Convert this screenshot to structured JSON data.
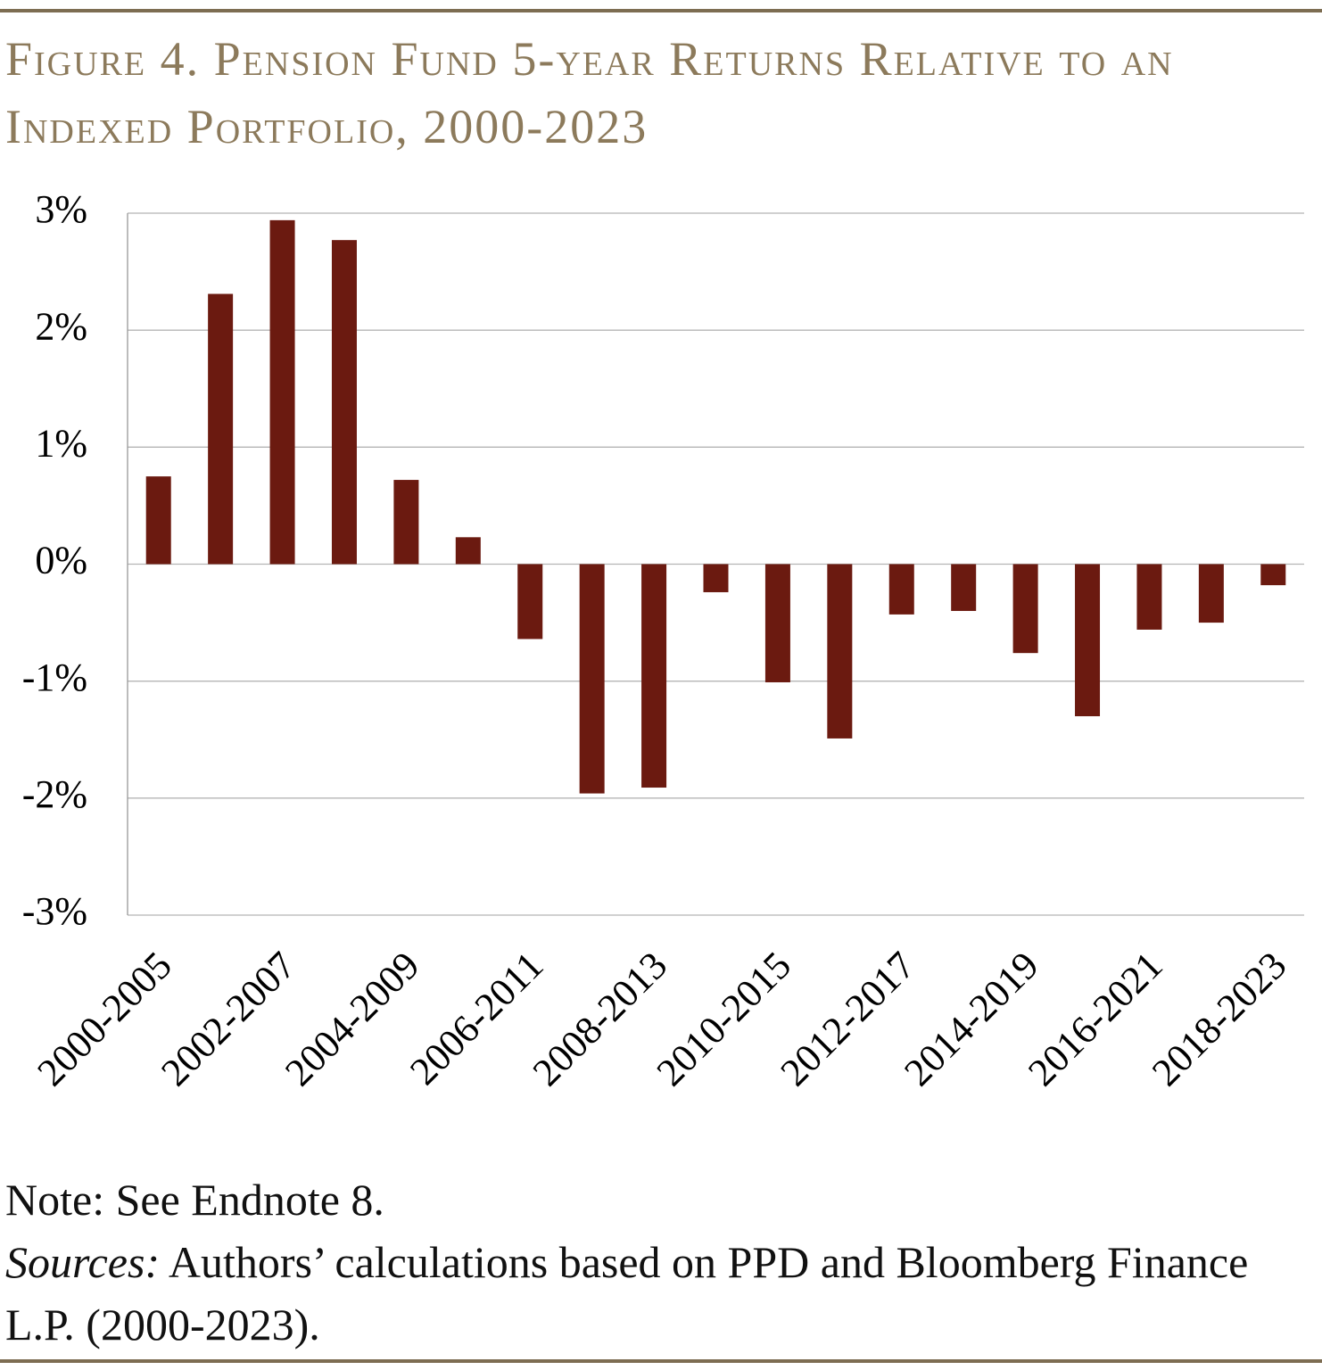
{
  "chart_data": {
    "type": "bar",
    "title": "Figure 4. Pension Fund 5-year Returns Relative to an Indexed Portfolio, 2000-2023",
    "categories": [
      "2000-2005",
      null,
      "2002-2007",
      null,
      "2004-2009",
      null,
      "2006-2011",
      null,
      "2008-2013",
      null,
      "2010-2015",
      null,
      "2012-2017",
      null,
      "2014-2019",
      null,
      "2016-2021",
      null,
      "2018-2023"
    ],
    "values": [
      0.75,
      2.31,
      2.94,
      2.77,
      0.72,
      0.23,
      -0.64,
      -1.96,
      -1.91,
      -0.24,
      -1.01,
      -1.49,
      -0.43,
      -0.4,
      -0.76,
      -1.3,
      -0.56,
      -0.5,
      -0.18
    ],
    "color": "#6b1a10",
    "ylim": [
      -3,
      3
    ],
    "yticks": [
      {
        "value": -3,
        "label": "-3%"
      },
      {
        "value": -2,
        "label": "-2%"
      },
      {
        "value": -1,
        "label": "-1%"
      },
      {
        "value": 0,
        "label": "0%"
      },
      {
        "value": 1,
        "label": "1%"
      },
      {
        "value": 2,
        "label": "2%"
      },
      {
        "value": 3,
        "label": "3%"
      }
    ],
    "grid": true
  },
  "notes": {
    "note": "Note: See Endnote 8.",
    "sources_label": "Sources:",
    "sources_text": " Authors’ calculations based on PPD and Bloomberg Finance L.P. (2000-2023)."
  }
}
